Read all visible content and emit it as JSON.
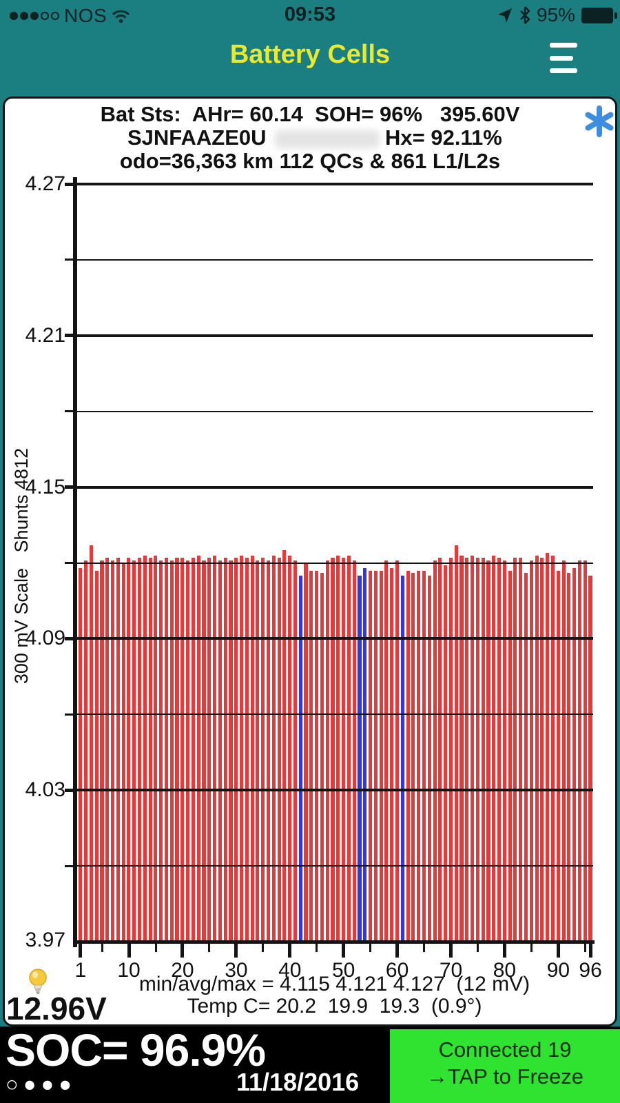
{
  "status_bar": {
    "carrier": "NOS",
    "signal": {
      "filled": 3,
      "total": 5
    },
    "time": "09:53",
    "battery_pct": "95%"
  },
  "header": {
    "title": "Battery Cells"
  },
  "chart_data": {
    "type": "bar",
    "header": {
      "line1": "Bat Sts:  AHr= 60.14  SOH= 96%   395.60V",
      "vin": "SJNFAAZE0U",
      "hx": "Hx= 92.11%",
      "line3": "odo=36,363 km 112 QCs & 861 L1/L2s"
    },
    "ylabel": "300 mV Scale   Shunts 4812",
    "xlabel": "",
    "ylim": [
      3.97,
      4.27
    ],
    "cells": 96,
    "yticks": [
      {
        "v": 4.27,
        "label": "4.27",
        "major": true
      },
      {
        "v": 4.24,
        "label": "",
        "major": false
      },
      {
        "v": 4.21,
        "label": "4.21",
        "major": true
      },
      {
        "v": 4.18,
        "label": "",
        "major": false
      },
      {
        "v": 4.15,
        "label": "4.15",
        "major": true
      },
      {
        "v": 4.12,
        "label": "",
        "major": false
      },
      {
        "v": 4.09,
        "label": "4.09",
        "major": true
      },
      {
        "v": 4.06,
        "label": "",
        "major": false
      },
      {
        "v": 4.03,
        "label": "4.03",
        "major": true
      },
      {
        "v": 4.0,
        "label": "",
        "major": false
      }
    ],
    "xticks_major": [
      {
        "cell": 1,
        "label": "1"
      },
      {
        "cell": 10,
        "label": "10"
      },
      {
        "cell": 20,
        "label": "20"
      },
      {
        "cell": 30,
        "label": "30"
      },
      {
        "cell": 40,
        "label": "40"
      },
      {
        "cell": 50,
        "label": "50"
      },
      {
        "cell": 60,
        "label": "60"
      },
      {
        "cell": 70,
        "label": "70"
      },
      {
        "cell": 80,
        "label": "80"
      },
      {
        "cell": 90,
        "label": "90"
      },
      {
        "cell": 96,
        "label": "96"
      }
    ],
    "xticks_minor": [
      5,
      15,
      25,
      35,
      45,
      55,
      65,
      75,
      85,
      95
    ],
    "baseline_label": "3.97",
    "values": [
      4.118,
      4.121,
      4.127,
      4.117,
      4.121,
      4.122,
      4.121,
      4.122,
      4.12,
      4.122,
      4.121,
      4.122,
      4.123,
      4.122,
      4.123,
      4.121,
      4.122,
      4.121,
      4.122,
      4.122,
      4.121,
      4.122,
      4.123,
      4.121,
      4.122,
      4.123,
      4.121,
      4.122,
      4.121,
      4.122,
      4.123,
      4.122,
      4.123,
      4.121,
      4.122,
      4.121,
      4.123,
      4.122,
      4.125,
      4.123,
      4.121,
      4.115,
      4.12,
      4.117,
      4.117,
      4.116,
      4.121,
      4.122,
      4.123,
      4.122,
      4.123,
      4.121,
      4.115,
      4.118,
      4.117,
      4.117,
      4.117,
      4.121,
      4.118,
      4.121,
      4.115,
      4.117,
      4.116,
      4.117,
      4.117,
      4.115,
      4.121,
      4.122,
      4.119,
      4.122,
      4.127,
      4.123,
      4.122,
      4.123,
      4.122,
      4.122,
      4.121,
      4.123,
      4.122,
      4.121,
      4.117,
      4.122,
      4.122,
      4.116,
      4.121,
      4.123,
      4.122,
      4.124,
      4.123,
      4.117,
      4.121,
      4.116,
      4.118,
      4.121,
      4.121,
      4.115
    ],
    "blue_cells": [
      42,
      53,
      54,
      61
    ],
    "annotations": {
      "min": 4.115,
      "avg": 4.121,
      "max": 4.127,
      "spread_mv": 12,
      "min_avg_max_line": "min/avg/max = 4.115 4.121 4.127  (12 mV)",
      "temp_line": "Temp C= 20.2  19.9  19.3  (0.9°)",
      "aux_battery_voltage": "12.96V"
    },
    "colors": {
      "bar": "#E23B3C",
      "bar_shunt": "#3437DC",
      "grid": "#141414",
      "asterisk": "#3E8EE0"
    },
    "legend": "none",
    "grid_on": true
  },
  "footer": {
    "soc": "SOC= 96.9%",
    "date": "11/18/2016",
    "page_dots": [
      "hollow",
      "filled",
      "filled",
      "filled"
    ],
    "connection": {
      "line1": "Connected 19",
      "line2": "→TAP to Freeze",
      "bg": "#30E330"
    }
  }
}
